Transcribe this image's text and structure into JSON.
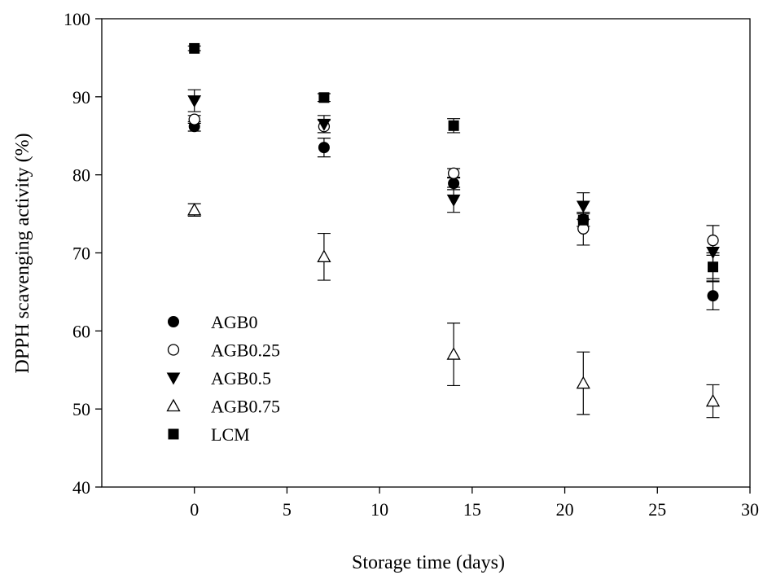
{
  "chart_data": {
    "type": "scatter",
    "xlabel": "Storage time (days)",
    "ylabel": "DPPH scavenging activity (%)",
    "xlim": [
      -5,
      30
    ],
    "ylim": [
      40,
      100
    ],
    "xticks": [
      0,
      5,
      10,
      15,
      20,
      25,
      30
    ],
    "yticks": [
      40,
      50,
      60,
      70,
      80,
      90,
      100
    ],
    "grid": false,
    "legend_position": "lower-left inside plot",
    "x": [
      0,
      7,
      14,
      21,
      28
    ],
    "series": [
      {
        "name": "AGB0",
        "marker": "filled-circle",
        "values": [
          86.2,
          83.5,
          78.9,
          74.3,
          64.5
        ],
        "errors": [
          0.6,
          1.2,
          0.8,
          0.9,
          1.8
        ]
      },
      {
        "name": "AGB0.25",
        "marker": "open-circle",
        "values": [
          87.1,
          86.2,
          80.2,
          73.1,
          71.6
        ],
        "errors": [
          0.5,
          0.8,
          0.6,
          2.1,
          1.9
        ]
      },
      {
        "name": "AGB0.5",
        "marker": "filled-triangle-down",
        "values": [
          89.5,
          86.5,
          76.8,
          76.0,
          70.1
        ],
        "errors": [
          1.4,
          1.1,
          1.6,
          1.7,
          3.4
        ]
      },
      {
        "name": "AGB0.75",
        "marker": "open-triangle-up",
        "values": [
          75.5,
          69.5,
          57.0,
          53.3,
          51.0
        ],
        "errors": [
          0.8,
          3.0,
          4.0,
          4.0,
          2.1
        ]
      },
      {
        "name": "LCM",
        "marker": "filled-square",
        "values": [
          96.2,
          89.9,
          86.3,
          74.2,
          68.2
        ],
        "errors": [
          0.3,
          0.5,
          0.9,
          0.8,
          1.8
        ]
      }
    ]
  }
}
